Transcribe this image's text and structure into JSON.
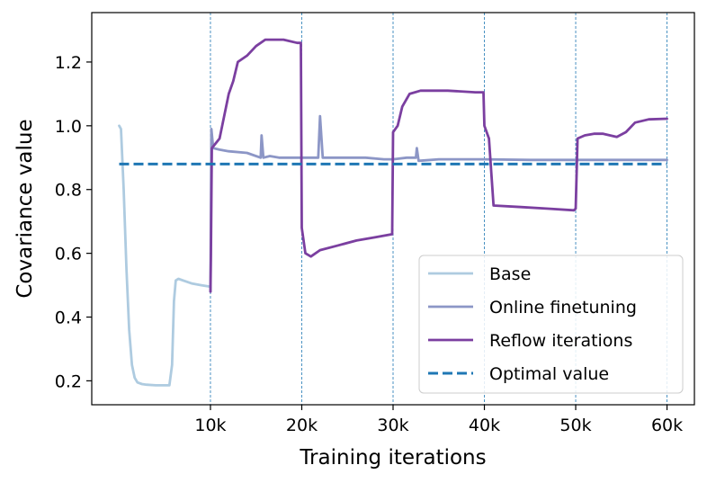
{
  "chart_data": {
    "type": "line",
    "xlabel": "Training iterations",
    "ylabel": "Covariance value",
    "xlim": [
      -3000,
      63000
    ],
    "ylim": [
      0.125,
      1.355
    ],
    "xticks": [
      10000,
      20000,
      30000,
      40000,
      50000,
      60000
    ],
    "xtick_labels": [
      "10k",
      "20k",
      "30k",
      "40k",
      "50k",
      "60k"
    ],
    "yticks": [
      0.2,
      0.4,
      0.6,
      0.8,
      1.0,
      1.2
    ],
    "ytick_labels": [
      "0.2",
      "0.4",
      "0.6",
      "0.8",
      "1.0",
      "1.2"
    ],
    "vlines": [
      10000,
      20000,
      30000,
      40000,
      50000,
      60000
    ],
    "grid": false,
    "legend_position": "lower-right",
    "series": [
      {
        "name": "Base",
        "color": "#aecbe0",
        "style": "solid",
        "points": [
          [
            0,
            1.0
          ],
          [
            200,
            0.99
          ],
          [
            500,
            0.8
          ],
          [
            800,
            0.55
          ],
          [
            1100,
            0.36
          ],
          [
            1400,
            0.25
          ],
          [
            1700,
            0.21
          ],
          [
            2000,
            0.195
          ],
          [
            2500,
            0.19
          ],
          [
            3000,
            0.188
          ],
          [
            4000,
            0.186
          ],
          [
            5000,
            0.186
          ],
          [
            5500,
            0.186
          ],
          [
            5800,
            0.25
          ],
          [
            6000,
            0.45
          ],
          [
            6200,
            0.515
          ],
          [
            6500,
            0.52
          ],
          [
            7000,
            0.515
          ],
          [
            8000,
            0.505
          ],
          [
            9000,
            0.5
          ],
          [
            10000,
            0.495
          ]
        ]
      },
      {
        "name": "Online finetuning",
        "color": "#8c96c6",
        "style": "solid",
        "points": [
          [
            10000,
            0.48
          ],
          [
            10100,
            0.99
          ],
          [
            10300,
            0.93
          ],
          [
            11000,
            0.925
          ],
          [
            12000,
            0.92
          ],
          [
            14000,
            0.915
          ],
          [
            15500,
            0.9
          ],
          [
            15600,
            0.97
          ],
          [
            15800,
            0.9
          ],
          [
            16500,
            0.905
          ],
          [
            17500,
            0.9
          ],
          [
            19000,
            0.9
          ],
          [
            20000,
            0.9
          ],
          [
            21000,
            0.9
          ],
          [
            21800,
            0.9
          ],
          [
            22000,
            1.03
          ],
          [
            22300,
            0.9
          ],
          [
            23000,
            0.9
          ],
          [
            25000,
            0.9
          ],
          [
            27000,
            0.9
          ],
          [
            29000,
            0.895
          ],
          [
            30000,
            0.895
          ],
          [
            31500,
            0.9
          ],
          [
            32500,
            0.9
          ],
          [
            32600,
            0.93
          ],
          [
            32800,
            0.89
          ],
          [
            35000,
            0.895
          ],
          [
            40000,
            0.895
          ],
          [
            45000,
            0.893
          ],
          [
            50000,
            0.893
          ],
          [
            55000,
            0.893
          ],
          [
            60000,
            0.893
          ]
        ]
      },
      {
        "name": "Reflow iterations",
        "color": "#7b3fa0",
        "style": "solid",
        "points": [
          [
            10000,
            0.48
          ],
          [
            10050,
            0.6
          ],
          [
            10150,
            0.93
          ],
          [
            11000,
            0.96
          ],
          [
            12000,
            1.1
          ],
          [
            12500,
            1.14
          ],
          [
            13000,
            1.2
          ],
          [
            14000,
            1.22
          ],
          [
            15000,
            1.25
          ],
          [
            16000,
            1.27
          ],
          [
            18000,
            1.27
          ],
          [
            19500,
            1.26
          ],
          [
            19900,
            1.26
          ],
          [
            20000,
            0.68
          ],
          [
            20400,
            0.6
          ],
          [
            21000,
            0.59
          ],
          [
            22000,
            0.61
          ],
          [
            24000,
            0.625
          ],
          [
            26000,
            0.64
          ],
          [
            28000,
            0.65
          ],
          [
            29900,
            0.66
          ],
          [
            30000,
            0.98
          ],
          [
            30500,
            1.0
          ],
          [
            31000,
            1.06
          ],
          [
            31800,
            1.1
          ],
          [
            33000,
            1.11
          ],
          [
            36000,
            1.11
          ],
          [
            39000,
            1.105
          ],
          [
            39900,
            1.105
          ],
          [
            40000,
            1.0
          ],
          [
            40500,
            0.96
          ],
          [
            41000,
            0.75
          ],
          [
            44000,
            0.745
          ],
          [
            47000,
            0.74
          ],
          [
            49800,
            0.735
          ],
          [
            50000,
            0.74
          ],
          [
            50200,
            0.96
          ],
          [
            51000,
            0.97
          ],
          [
            52000,
            0.975
          ],
          [
            53000,
            0.975
          ],
          [
            54500,
            0.965
          ],
          [
            55500,
            0.98
          ],
          [
            56500,
            1.01
          ],
          [
            58000,
            1.02
          ],
          [
            60000,
            1.022
          ]
        ]
      },
      {
        "name": "Optimal value",
        "color": "#1f77b4",
        "style": "dashed",
        "points": [
          [
            0,
            0.88
          ],
          [
            60000,
            0.88
          ]
        ]
      }
    ]
  }
}
